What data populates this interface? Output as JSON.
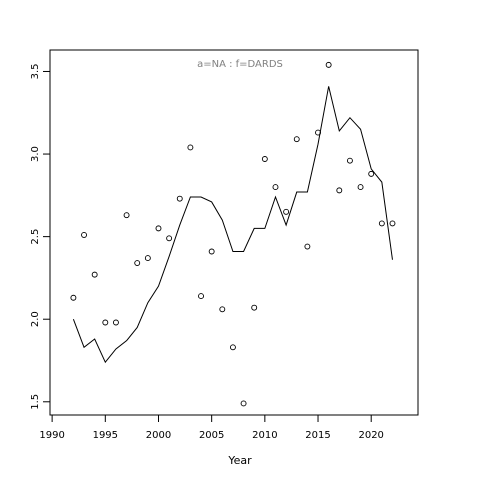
{
  "chart_data": {
    "type": "scatter",
    "annotation": "a=NA  :  f=DARDS",
    "x_label": "Year",
    "x": [
      1992,
      1993,
      1994,
      1995,
      1996,
      1997,
      1998,
      1999,
      2000,
      2001,
      2002,
      2003,
      2004,
      2005,
      2006,
      2007,
      2008,
      2009,
      2010,
      2011,
      2012,
      2013,
      2014,
      2015,
      2016,
      2017,
      2018,
      2019,
      2020,
      2021,
      2022
    ],
    "series": [
      {
        "mode": "points",
        "color": "#000000",
        "values": [
          2.13,
          2.51,
          2.27,
          1.98,
          1.98,
          2.63,
          2.34,
          2.37,
          2.55,
          2.49,
          2.73,
          3.04,
          2.14,
          2.41,
          2.06,
          1.83,
          1.49,
          2.07,
          2.97,
          2.8,
          2.65,
          3.09,
          2.44,
          3.13,
          3.54,
          2.78,
          2.96,
          2.8,
          2.88,
          2.58,
          2.58
        ]
      },
      {
        "mode": "line",
        "color": "#000000",
        "values": [
          2.0,
          1.83,
          1.88,
          1.74,
          1.82,
          1.87,
          1.95,
          2.1,
          2.2,
          2.38,
          2.57,
          2.74,
          2.74,
          2.71,
          2.6,
          2.41,
          2.41,
          2.55,
          2.55,
          2.74,
          2.57,
          2.77,
          2.77,
          3.06,
          3.41,
          3.14,
          3.22,
          3.15,
          2.91,
          2.83,
          2.36
        ]
      }
    ],
    "xlim": [
      1989.8,
      2024.4
    ],
    "xticks": [
      1990,
      1995,
      2000,
      2005,
      2010,
      2015,
      2020
    ],
    "ylim": [
      1.42,
      3.63
    ],
    "yticks": [
      {
        "value": 1.5,
        "label": "1.5"
      },
      {
        "value": 2,
        "label": "2.0"
      },
      {
        "value": 2.5,
        "label": "2.5"
      },
      {
        "value": 3,
        "label": "3.0"
      },
      {
        "value": 3.5,
        "label": "3.5"
      }
    ],
    "annotation_color": "#808080"
  }
}
